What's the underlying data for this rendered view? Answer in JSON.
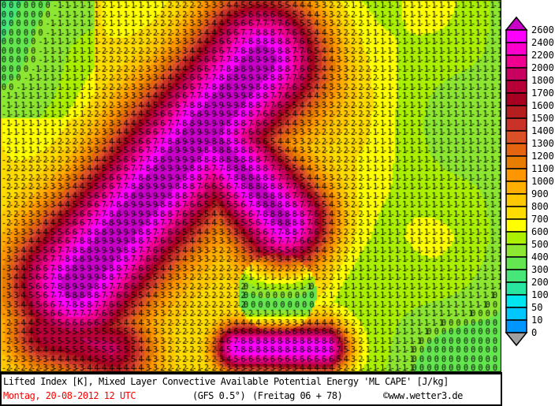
{
  "map": {
    "title": "Lifted Index [K], Mixed Layer Convective Available Potential Energy 'ML CAPE' [J/kg]",
    "date": "Montag, 20-08-2012  12 UTC",
    "model": "(GFS 0.5°)",
    "run": "(Freitag 06 + 78)",
    "copyright": "©www.wetter3.de",
    "date_color": "#ff0000",
    "below_zero_color": "#a0a0a0"
  },
  "legend": {
    "labels": [
      "2600",
      "2400",
      "2200",
      "2000",
      "1800",
      "1700",
      "1600",
      "1500",
      "1400",
      "1300",
      "1200",
      "1100",
      "1000",
      "900",
      "800",
      "700",
      "600",
      "500",
      "400",
      "300",
      "200",
      "100",
      "50",
      "10",
      "0"
    ],
    "colors": [
      "#ff00ff",
      "#ff00cc",
      "#f00090",
      "#c80060",
      "#b80038",
      "#a80020",
      "#b41e1e",
      "#c83228",
      "#dc5028",
      "#e46410",
      "#e67d00",
      "#ff9600",
      "#ffaf00",
      "#ffc800",
      "#ffdc00",
      "#ffff00",
      "#aaf000",
      "#8ce632",
      "#64e650",
      "#46e678",
      "#28e6a0",
      "#00e6f0",
      "#00c8ff",
      "#0096ff"
    ],
    "top_color": "#c800c8",
    "bottom_color": "#a0a0a0"
  }
}
